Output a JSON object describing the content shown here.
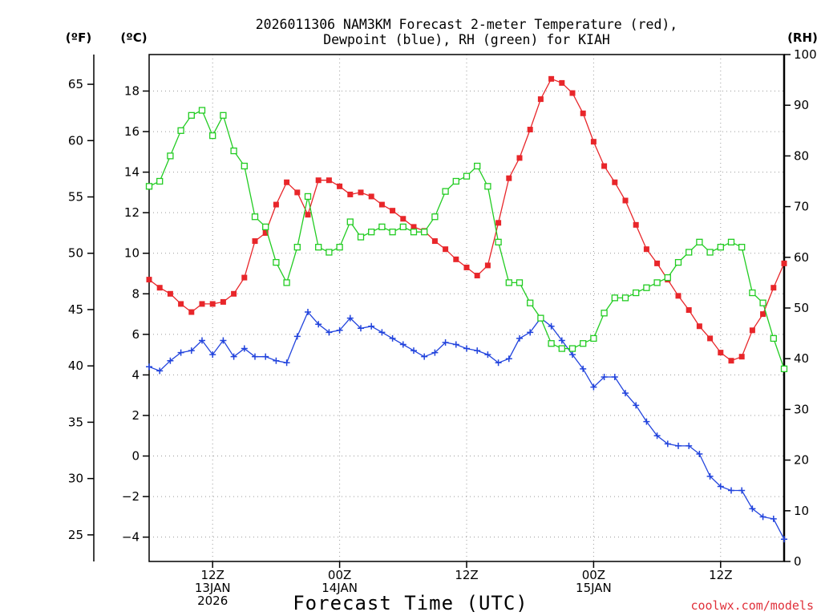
{
  "chart_data": {
    "type": "line",
    "title_line1": "2026011306 NAM3KM Forecast 2-meter Temperature (red),",
    "title_line2": "Dewpoint (blue), RH (green) for KIAH",
    "xlabel": "Forecast Time (UTC)",
    "credit": "coolwx.com/models",
    "units": {
      "fahrenheit": "(ºF)",
      "celsius": "(ºC)",
      "rh": "(RH)"
    },
    "x_range_hours": [
      0,
      60
    ],
    "x_ticks": [
      {
        "hour": 6,
        "lines": [
          "12Z",
          "13JAN",
          "2026"
        ]
      },
      {
        "hour": 18,
        "lines": [
          "00Z",
          "14JAN"
        ]
      },
      {
        "hour": 30,
        "lines": [
          "12Z"
        ]
      },
      {
        "hour": 42,
        "lines": [
          "00Z",
          "15JAN"
        ]
      },
      {
        "hour": 54,
        "lines": [
          "12Z"
        ]
      }
    ],
    "ylim_celsius": [
      -5.2,
      19.8
    ],
    "ylim_rh": [
      0,
      100
    ],
    "yticks_celsius": [
      "−4",
      "−2",
      "0",
      "2",
      "4",
      "6",
      "8",
      "10",
      "12",
      "14",
      "16",
      "18"
    ],
    "yticks_fahrenheit": [
      "25",
      "30",
      "35",
      "40",
      "45",
      "50",
      "55",
      "60",
      "65"
    ],
    "yticks_rh": [
      "0",
      "10",
      "20",
      "30",
      "40",
      "50",
      "60",
      "70",
      "80",
      "90",
      "100"
    ],
    "series": [
      {
        "name": "Temperature",
        "unit": "C",
        "color": "#e8262a",
        "marker": "filled-square",
        "values": [
          8.7,
          8.3,
          8.0,
          7.5,
          7.1,
          7.5,
          7.5,
          7.6,
          8.0,
          8.8,
          10.6,
          11.0,
          12.4,
          13.5,
          13.0,
          11.9,
          13.6,
          13.6,
          13.3,
          12.9,
          13.0,
          12.8,
          12.4,
          12.1,
          11.7,
          11.3,
          11.1,
          10.6,
          10.2,
          9.7,
          9.3,
          8.9,
          9.4,
          11.5,
          13.7,
          14.7,
          16.1,
          17.6,
          18.6,
          18.4,
          17.9,
          16.9,
          15.5,
          14.3,
          13.5,
          12.6,
          11.4,
          10.2,
          9.5,
          8.7,
          7.9,
          7.2,
          6.4,
          5.8,
          5.1,
          4.7,
          4.9,
          6.2,
          7.0,
          8.3,
          9.5
        ]
      },
      {
        "name": "Dewpoint",
        "unit": "C",
        "color": "#2244dd",
        "marker": "plus",
        "values": [
          4.4,
          4.2,
          4.7,
          5.1,
          5.2,
          5.7,
          5.0,
          5.7,
          4.9,
          5.3,
          4.9,
          4.9,
          4.7,
          4.6,
          5.9,
          7.1,
          6.5,
          6.1,
          6.2,
          6.8,
          6.3,
          6.4,
          6.1,
          5.8,
          5.5,
          5.2,
          4.9,
          5.1,
          5.6,
          5.5,
          5.3,
          5.2,
          5.0,
          4.6,
          4.8,
          5.8,
          6.1,
          6.8,
          6.4,
          5.7,
          5.0,
          4.3,
          3.4,
          3.9,
          3.9,
          3.1,
          2.5,
          1.7,
          1.0,
          0.6,
          0.5,
          0.5,
          0.1,
          -1.0,
          -1.5,
          -1.7,
          -1.7,
          -2.6,
          -3.0,
          -3.1,
          -4.1
        ]
      },
      {
        "name": "Relative Humidity",
        "unit": "%",
        "color": "#22cc22",
        "marker": "open-square",
        "values": [
          74,
          75,
          80,
          85,
          88,
          89,
          84,
          88,
          81,
          78,
          68,
          66,
          59,
          55,
          62,
          72,
          62,
          61,
          62,
          67,
          64,
          65,
          66,
          65,
          66,
          65,
          65,
          68,
          73,
          75,
          76,
          78,
          74,
          63,
          55,
          55,
          51,
          48,
          43,
          42,
          42,
          43,
          44,
          49,
          52,
          52,
          53,
          54,
          55,
          56,
          59,
          61,
          63,
          61,
          62,
          63,
          62,
          53,
          51,
          44,
          38
        ]
      }
    ]
  }
}
